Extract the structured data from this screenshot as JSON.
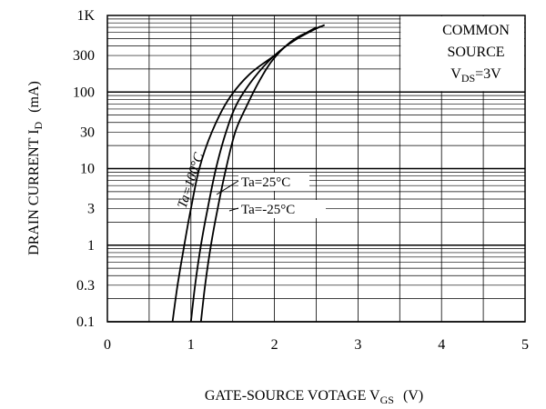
{
  "chart_data": {
    "type": "line",
    "title": "",
    "xlabel": "GATE-SOURCE VOTAGE V",
    "xlabel_sub": "GS",
    "xlabel_unit": "(V)",
    "ylabel": "DRAIN CURRENT I",
    "ylabel_sub": "D",
    "ylabel_unit": "(mA)",
    "xlim": [
      0,
      5
    ],
    "ylim": [
      0.1,
      1000
    ],
    "yscale": "log",
    "grid": true,
    "x_ticks": [
      0,
      1,
      2,
      3,
      4,
      5
    ],
    "x_tick_labels": [
      "0",
      "1",
      "2",
      "3",
      "4",
      "5"
    ],
    "y_ticks": [
      0.1,
      0.3,
      1,
      3,
      10,
      30,
      100,
      300,
      1000
    ],
    "y_tick_labels": [
      "0.1",
      "0.3",
      "1",
      "3",
      "10",
      "30",
      "100",
      "300",
      "1K"
    ],
    "annotation": {
      "line1": "COMMON",
      "line2": "SOURCE",
      "line3_main": "V",
      "line3_sub": "DS",
      "line3_tail": "=3V"
    },
    "series": [
      {
        "name": "Ta=100°C",
        "x": [
          0.78,
          0.84,
          0.92,
          1.0,
          1.1,
          1.25,
          1.45,
          1.7,
          2.0,
          2.2,
          2.5
        ],
        "y": [
          0.1,
          0.3,
          1,
          3,
          10,
          30,
          80,
          170,
          300,
          450,
          700
        ]
      },
      {
        "name": "Ta=25°C",
        "x": [
          1.0,
          1.05,
          1.12,
          1.2,
          1.3,
          1.42,
          1.55,
          1.75,
          2.0,
          2.25,
          2.55
        ],
        "y": [
          0.1,
          0.3,
          1,
          3,
          10,
          30,
          70,
          150,
          300,
          480,
          720
        ]
      },
      {
        "name": "Ta=-25°C",
        "x": [
          1.12,
          1.17,
          1.24,
          1.32,
          1.42,
          1.53,
          1.65,
          1.82,
          2.0,
          2.25,
          2.6
        ],
        "y": [
          0.1,
          0.3,
          1,
          3,
          10,
          30,
          60,
          140,
          280,
          500,
          750
        ]
      }
    ]
  }
}
